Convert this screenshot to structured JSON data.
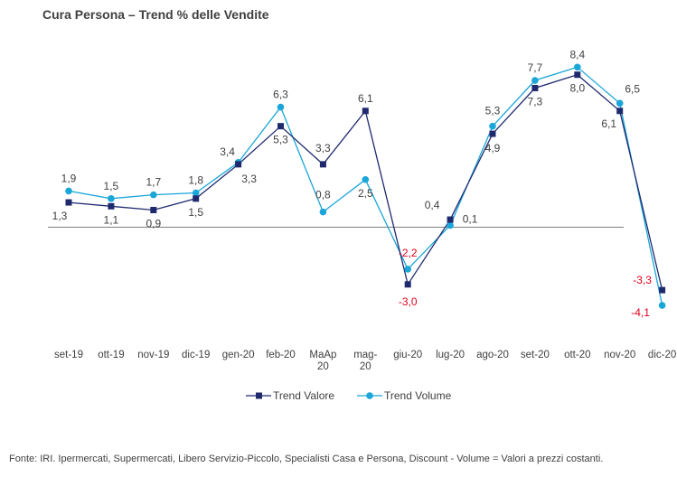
{
  "title": "Cura Persona –  Trend % delle Vendite",
  "footer": "Fonte: IRI. Ipermercati, Supermercati, Libero Servizio-Piccolo,  Specialisti Casa e Persona, Discount -  Volume =  Valori a prezzi  costanti.",
  "colors": {
    "valore": "#1f2a6e",
    "volume": "#1aa6d8",
    "negative_label": "#e0001b",
    "label": "#404040"
  },
  "chart_data": {
    "type": "line",
    "categories": [
      "set-19",
      "ott-19",
      "nov-19",
      "dic-19",
      "gen-20",
      "feb-20",
      "MaAp 20",
      "mag-20",
      "giu-20",
      "lug-20",
      "ago-20",
      "set-20",
      "ott-20",
      "nov-20",
      "dic-20"
    ],
    "series": [
      {
        "name": "Trend Valore",
        "values": [
          1.3,
          1.1,
          0.9,
          1.5,
          3.3,
          5.3,
          3.3,
          6.1,
          -3.0,
          0.4,
          4.9,
          7.3,
          8.0,
          6.1,
          -3.3
        ]
      },
      {
        "name": "Trend Volume",
        "values": [
          1.9,
          1.5,
          1.7,
          1.8,
          3.4,
          6.3,
          0.8,
          2.5,
          -2.2,
          0.1,
          5.3,
          7.7,
          8.4,
          6.5,
          -4.1
        ]
      }
    ],
    "value_labels": {
      "Trend Valore": [
        "1,3",
        "1,1",
        "0,9",
        "1,5",
        "3,3",
        "5,3",
        "3,3",
        "6,1",
        "-3,0",
        "0,4",
        "4,9",
        "7,3",
        "8,0",
        "6,1",
        "-3,3"
      ],
      "Trend Volume": [
        "1,9",
        "1,5",
        "1,7",
        "1,8",
        "3,4",
        "6,3",
        "0,8",
        "2,5",
        "-2,2",
        "0,1",
        "5,3",
        "7,7",
        "8,4",
        "6,5",
        "-4,1"
      ]
    },
    "category_labels": [
      [
        "set-19"
      ],
      [
        "ott-19"
      ],
      [
        "nov-19"
      ],
      [
        "dic-19"
      ],
      [
        "gen-20"
      ],
      [
        "feb-20"
      ],
      [
        "MaAp",
        "20"
      ],
      [
        "mag-",
        "20"
      ],
      [
        "giu-20"
      ],
      [
        "lug-20"
      ],
      [
        "ago-20"
      ],
      [
        "set-20"
      ],
      [
        "ott-20"
      ],
      [
        "nov-20"
      ],
      [
        "dic-20"
      ]
    ],
    "legend": "bottom",
    "grid": false
  }
}
